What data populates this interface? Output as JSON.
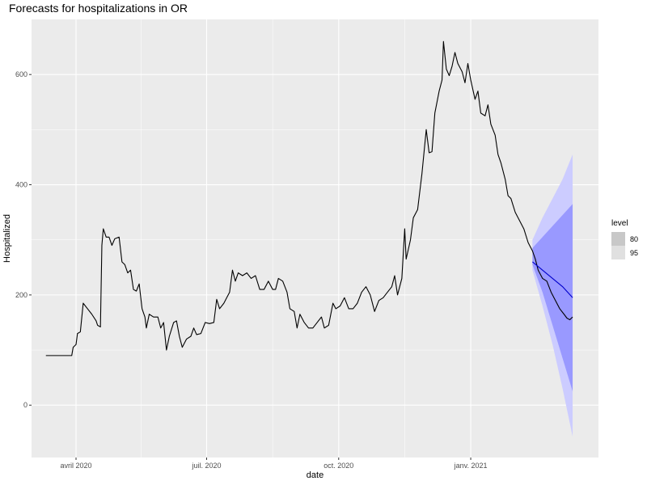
{
  "chart_data": {
    "type": "line",
    "title": "Forecasts for hospitalizations in OR",
    "xlabel": "date",
    "ylabel": "Hospitalized",
    "xlim": [
      "2020-03-01",
      "2021-03-31"
    ],
    "ylim": [
      -95,
      700
    ],
    "x_ticks": [
      {
        "date": "2020-04-01",
        "label": "avril 2020"
      },
      {
        "date": "2020-07-01",
        "label": "juil. 2020"
      },
      {
        "date": "2020-10-01",
        "label": "oct. 2020"
      },
      {
        "date": "2021-01-01",
        "label": "janv. 2021"
      }
    ],
    "y_ticks": [
      0,
      200,
      400,
      600
    ],
    "grid": true,
    "legend": {
      "title": "level",
      "position": "right",
      "entries": [
        {
          "label": "80",
          "color": "#c8c8c8"
        },
        {
          "label": "95",
          "color": "#e0e0e0"
        }
      ]
    },
    "colors": {
      "panel_background": "#ebebeb",
      "grid_major": "#ffffff",
      "observed_line": "#000000",
      "forecast_line": "#0000cc",
      "band_80": "#9999ff",
      "band_95": "#ccccff"
    },
    "series": [
      {
        "kind": "observed",
        "points": [
          [
            "2020-03-11",
            90
          ],
          [
            "2020-03-18",
            90
          ],
          [
            "2020-03-25",
            90
          ],
          [
            "2020-03-29",
            90
          ],
          [
            "2020-03-30",
            105
          ],
          [
            "2020-04-01",
            110
          ],
          [
            "2020-04-02",
            130
          ],
          [
            "2020-04-04",
            133
          ],
          [
            "2020-04-06",
            185
          ],
          [
            "2020-04-09",
            175
          ],
          [
            "2020-04-12",
            165
          ],
          [
            "2020-04-15",
            153
          ],
          [
            "2020-04-16",
            145
          ],
          [
            "2020-04-18",
            142
          ],
          [
            "2020-04-19",
            290
          ],
          [
            "2020-04-20",
            320
          ],
          [
            "2020-04-22",
            305
          ],
          [
            "2020-04-24",
            305
          ],
          [
            "2020-04-26",
            290
          ],
          [
            "2020-04-28",
            302
          ],
          [
            "2020-05-01",
            305
          ],
          [
            "2020-05-03",
            260
          ],
          [
            "2020-05-05",
            255
          ],
          [
            "2020-05-07",
            240
          ],
          [
            "2020-05-09",
            245
          ],
          [
            "2020-05-11",
            210
          ],
          [
            "2020-05-13",
            207
          ],
          [
            "2020-05-15",
            220
          ],
          [
            "2020-05-17",
            175
          ],
          [
            "2020-05-19",
            160
          ],
          [
            "2020-05-20",
            140
          ],
          [
            "2020-05-22",
            165
          ],
          [
            "2020-05-25",
            160
          ],
          [
            "2020-05-28",
            160
          ],
          [
            "2020-05-30",
            140
          ],
          [
            "2020-06-01",
            150
          ],
          [
            "2020-06-03",
            100
          ],
          [
            "2020-06-05",
            125
          ],
          [
            "2020-06-08",
            150
          ],
          [
            "2020-06-10",
            153
          ],
          [
            "2020-06-12",
            125
          ],
          [
            "2020-06-14",
            105
          ],
          [
            "2020-06-17",
            120
          ],
          [
            "2020-06-20",
            125
          ],
          [
            "2020-06-22",
            140
          ],
          [
            "2020-06-24",
            128
          ],
          [
            "2020-06-27",
            130
          ],
          [
            "2020-06-30",
            150
          ],
          [
            "2020-07-03",
            148
          ],
          [
            "2020-07-06",
            150
          ],
          [
            "2020-07-08",
            192
          ],
          [
            "2020-07-10",
            175
          ],
          [
            "2020-07-13",
            185
          ],
          [
            "2020-07-15",
            195
          ],
          [
            "2020-07-17",
            205
          ],
          [
            "2020-07-19",
            245
          ],
          [
            "2020-07-21",
            225
          ],
          [
            "2020-07-23",
            240
          ],
          [
            "2020-07-26",
            235
          ],
          [
            "2020-07-29",
            240
          ],
          [
            "2020-08-01",
            230
          ],
          [
            "2020-08-04",
            235
          ],
          [
            "2020-08-07",
            210
          ],
          [
            "2020-08-10",
            210
          ],
          [
            "2020-08-13",
            225
          ],
          [
            "2020-08-16",
            210
          ],
          [
            "2020-08-18",
            210
          ],
          [
            "2020-08-20",
            230
          ],
          [
            "2020-08-23",
            225
          ],
          [
            "2020-08-26",
            205
          ],
          [
            "2020-08-28",
            175
          ],
          [
            "2020-08-31",
            170
          ],
          [
            "2020-09-02",
            140
          ],
          [
            "2020-09-04",
            165
          ],
          [
            "2020-09-07",
            150
          ],
          [
            "2020-09-10",
            140
          ],
          [
            "2020-09-13",
            140
          ],
          [
            "2020-09-16",
            150
          ],
          [
            "2020-09-19",
            160
          ],
          [
            "2020-09-21",
            140
          ],
          [
            "2020-09-24",
            145
          ],
          [
            "2020-09-27",
            185
          ],
          [
            "2020-09-29",
            175
          ],
          [
            "2020-10-02",
            180
          ],
          [
            "2020-10-05",
            195
          ],
          [
            "2020-10-08",
            175
          ],
          [
            "2020-10-11",
            175
          ],
          [
            "2020-10-14",
            185
          ],
          [
            "2020-10-17",
            205
          ],
          [
            "2020-10-20",
            215
          ],
          [
            "2020-10-23",
            200
          ],
          [
            "2020-10-26",
            170
          ],
          [
            "2020-10-29",
            190
          ],
          [
            "2020-11-01",
            195
          ],
          [
            "2020-11-04",
            205
          ],
          [
            "2020-11-07",
            215
          ],
          [
            "2020-11-09",
            235
          ],
          [
            "2020-11-11",
            200
          ],
          [
            "2020-11-14",
            230
          ],
          [
            "2020-11-16",
            320
          ],
          [
            "2020-11-17",
            265
          ],
          [
            "2020-11-20",
            300
          ],
          [
            "2020-11-22",
            340
          ],
          [
            "2020-11-25",
            355
          ],
          [
            "2020-11-28",
            420
          ],
          [
            "2020-12-01",
            500
          ],
          [
            "2020-12-03",
            458
          ],
          [
            "2020-12-05",
            460
          ],
          [
            "2020-12-07",
            530
          ],
          [
            "2020-12-10",
            570
          ],
          [
            "2020-12-12",
            590
          ],
          [
            "2020-12-13",
            660
          ],
          [
            "2020-12-15",
            610
          ],
          [
            "2020-12-17",
            598
          ],
          [
            "2020-12-19",
            615
          ],
          [
            "2020-12-21",
            640
          ],
          [
            "2020-12-23",
            620
          ],
          [
            "2020-12-26",
            605
          ],
          [
            "2020-12-28",
            585
          ],
          [
            "2020-12-30",
            620
          ],
          [
            "2021-01-01",
            590
          ],
          [
            "2021-01-04",
            555
          ],
          [
            "2021-01-06",
            570
          ],
          [
            "2021-01-08",
            530
          ],
          [
            "2021-01-11",
            525
          ],
          [
            "2021-01-13",
            545
          ],
          [
            "2021-01-15",
            510
          ],
          [
            "2021-01-18",
            490
          ],
          [
            "2021-01-20",
            455
          ],
          [
            "2021-01-22",
            440
          ],
          [
            "2021-01-25",
            410
          ],
          [
            "2021-01-27",
            380
          ],
          [
            "2021-01-29",
            375
          ],
          [
            "2021-02-01",
            350
          ],
          [
            "2021-02-04",
            335
          ],
          [
            "2021-02-07",
            320
          ],
          [
            "2021-02-10",
            295
          ],
          [
            "2021-02-13",
            280
          ],
          [
            "2021-02-15",
            265
          ],
          [
            "2021-02-17",
            245
          ],
          [
            "2021-02-20",
            230
          ],
          [
            "2021-02-23",
            225
          ],
          [
            "2021-02-26",
            205
          ],
          [
            "2021-03-01",
            190
          ],
          [
            "2021-03-04",
            175
          ],
          [
            "2021-03-07",
            165
          ],
          [
            "2021-03-09",
            158
          ],
          [
            "2021-03-11",
            155
          ],
          [
            "2021-03-13",
            160
          ]
        ]
      },
      {
        "kind": "forecast_mean",
        "points": [
          [
            "2021-02-13",
            260
          ],
          [
            "2021-02-20",
            245
          ],
          [
            "2021-02-27",
            230
          ],
          [
            "2021-03-06",
            215
          ],
          [
            "2021-03-13",
            195
          ]
        ]
      },
      {
        "kind": "interval_95",
        "points": [
          [
            "2021-02-13",
            300,
            245
          ],
          [
            "2021-02-20",
            340,
            180
          ],
          [
            "2021-02-27",
            375,
            110
          ],
          [
            "2021-03-06",
            410,
            30
          ],
          [
            "2021-03-13",
            455,
            -57
          ]
        ]
      },
      {
        "kind": "interval_80",
        "points": [
          [
            "2021-02-13",
            285,
            255
          ],
          [
            "2021-02-20",
            305,
            205
          ],
          [
            "2021-02-27",
            325,
            145
          ],
          [
            "2021-03-06",
            345,
            85
          ],
          [
            "2021-03-13",
            365,
            25
          ]
        ]
      }
    ]
  }
}
